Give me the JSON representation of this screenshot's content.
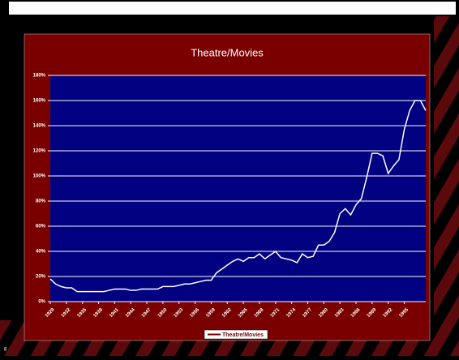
{
  "slide_number": "8",
  "chart_data": {
    "type": "line",
    "title": "Theatre/Movies",
    "x": [
      1929,
      1930,
      1931,
      1932,
      1933,
      1934,
      1935,
      1936,
      1937,
      1938,
      1939,
      1940,
      1941,
      1942,
      1943,
      1944,
      1945,
      1946,
      1947,
      1948,
      1949,
      1950,
      1951,
      1952,
      1953,
      1954,
      1955,
      1956,
      1957,
      1958,
      1959,
      1960,
      1961,
      1962,
      1963,
      1964,
      1965,
      1966,
      1967,
      1968,
      1969,
      1970,
      1971,
      1972,
      1973,
      1974,
      1975,
      1976,
      1977,
      1978,
      1979,
      1980,
      1981,
      1982,
      1983,
      1984,
      1985,
      1986,
      1987,
      1988,
      1989,
      1990,
      1991,
      1992,
      1993,
      1994,
      1995,
      1996,
      1997,
      1998,
      1999
    ],
    "series": [
      {
        "name": "Theatre/Movies",
        "color": "#ffffff",
        "values": [
          18,
          14,
          12,
          11,
          11,
          8,
          8,
          8,
          8,
          8,
          8,
          9,
          10,
          10,
          10,
          9,
          9,
          10,
          10,
          10,
          10,
          12,
          12,
          12,
          13,
          14,
          14,
          15,
          16,
          17,
          17,
          23,
          26,
          29,
          32,
          34,
          32,
          35,
          35,
          38,
          34,
          37,
          40,
          35,
          34,
          33,
          31,
          38,
          35,
          36,
          45,
          45,
          48,
          55,
          70,
          74,
          69,
          77,
          82,
          99,
          118,
          118,
          116,
          102,
          108,
          113,
          137,
          152,
          160,
          160,
          152
        ]
      }
    ],
    "xlim": [
      1929,
      1999
    ],
    "xticks": [
      1929,
      1932,
      1935,
      1938,
      1941,
      1944,
      1947,
      1950,
      1953,
      1956,
      1959,
      1962,
      1965,
      1968,
      1971,
      1974,
      1977,
      1980,
      1983,
      1986,
      1989,
      1992,
      1995
    ],
    "ylim": [
      0,
      180
    ],
    "yticks": [
      {
        "value": 0,
        "label": "0%"
      },
      {
        "value": 20,
        "label": "20%"
      },
      {
        "value": 40,
        "label": "40%"
      },
      {
        "value": 60,
        "label": "60%"
      },
      {
        "value": 80,
        "label": "80%"
      },
      {
        "value": 100,
        "label": "100%"
      },
      {
        "value": 120,
        "label": "120%"
      },
      {
        "value": 140,
        "label": "140%"
      },
      {
        "value": 160,
        "label": "160%"
      },
      {
        "value": 180,
        "label": "180%"
      }
    ],
    "grid": true,
    "legend": "bottom",
    "plot_color": "#000080",
    "panel_color": "#7a0000"
  }
}
